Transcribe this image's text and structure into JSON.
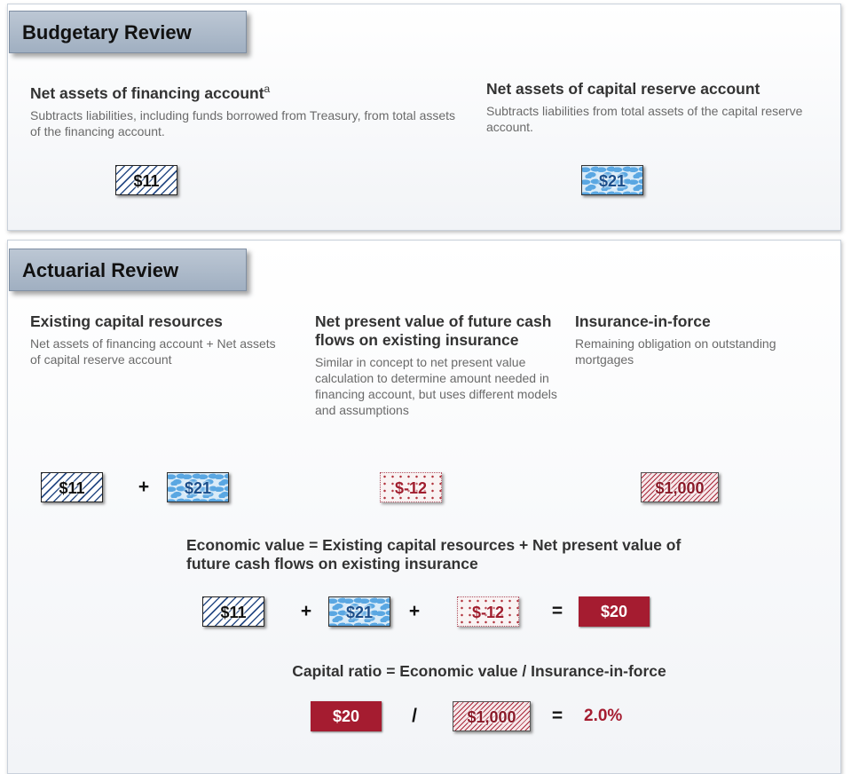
{
  "budgetary_review": {
    "title": "Budgetary Review",
    "items": [
      {
        "heading": "Net assets of financing account",
        "footnote": "a",
        "description": "Subtracts liabilities, including funds borrowed from Treasury, from total assets of the financing account.",
        "terms": [
          {
            "text": "$11",
            "style": "hatch"
          }
        ]
      },
      {
        "heading": "Net assets of capital reserve account",
        "description": "Subtracts liabilities from total assets of the capital reserve account.",
        "terms": [
          {
            "text": "$21",
            "style": "camo"
          }
        ]
      }
    ]
  },
  "actuarial_review": {
    "title": "Actuarial Review",
    "items": [
      {
        "heading": "Existing capital resources",
        "description": "Net assets of financing account + Net assets of capital reserve account",
        "terms": [
          {
            "text": "$11",
            "style": "hatch"
          },
          {
            "text": "+",
            "style": "operator"
          },
          {
            "text": "$21",
            "style": "camo"
          }
        ]
      },
      {
        "heading": "Net present value of future cash flows on existing insurance",
        "description": "Similar in concept to net present value calculation to determine amount needed in financing account, but uses different models and assumptions",
        "terms": [
          {
            "text": "$-12",
            "style": "dots"
          }
        ]
      },
      {
        "heading": "Insurance-in-force",
        "description": "Remaining obligation on outstanding mortgages",
        "terms": [
          {
            "text": "$1,000",
            "style": "redhatch"
          }
        ]
      }
    ],
    "equations": [
      {
        "text": "Economic value = Existing capital resources + Net present value of future cash flows on existing insurance",
        "terms": [
          {
            "text": "$11",
            "style": "hatch"
          },
          {
            "text": "+",
            "style": "operator"
          },
          {
            "text": "$21",
            "style": "camo"
          },
          {
            "text": "+",
            "style": "operator"
          },
          {
            "text": "$-12",
            "style": "dots"
          },
          {
            "text": "=",
            "style": "operator"
          },
          {
            "text": "$20",
            "style": "solid"
          }
        ]
      },
      {
        "text": "Capital ratio = Economic value / Insurance-in-force",
        "terms": [
          {
            "text": "$20",
            "style": "solid"
          },
          {
            "text": "/",
            "style": "operator"
          },
          {
            "text": "$1,000",
            "style": "redhatch"
          },
          {
            "text": "=",
            "style": "operator"
          },
          {
            "text": "2.0%",
            "style": "result"
          }
        ]
      }
    ]
  }
}
